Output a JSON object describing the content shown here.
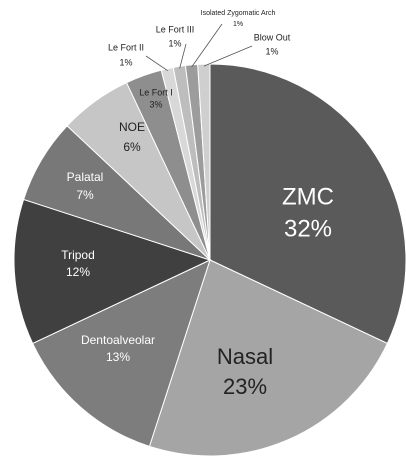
{
  "chart_data": {
    "type": "pie",
    "categories": [
      "ZMC",
      "Nasal",
      "Dentoalveolar",
      "Tripod",
      "Palatal",
      "NOE",
      "Le Fort I",
      "Le Fort II",
      "Le Fort III",
      "Isolated Zygomatic Arch",
      "Blow Out"
    ],
    "values": [
      32,
      23,
      13,
      12,
      7,
      6,
      3,
      1,
      1,
      1,
      1
    ],
    "value_labels": [
      "32%",
      "23%",
      "13%",
      "12%",
      "7%",
      "6%",
      "3%",
      "1%",
      "1%",
      "1%",
      "1%"
    ],
    "colors": [
      "#5a5a5a",
      "#a5a5a5",
      "#7d7d7d",
      "#404040",
      "#787878",
      "#c6c6c6",
      "#8e8e8e",
      "#d8d8d8",
      "#bdbdbd",
      "#9c9c9c",
      "#cfcfcf"
    ]
  }
}
